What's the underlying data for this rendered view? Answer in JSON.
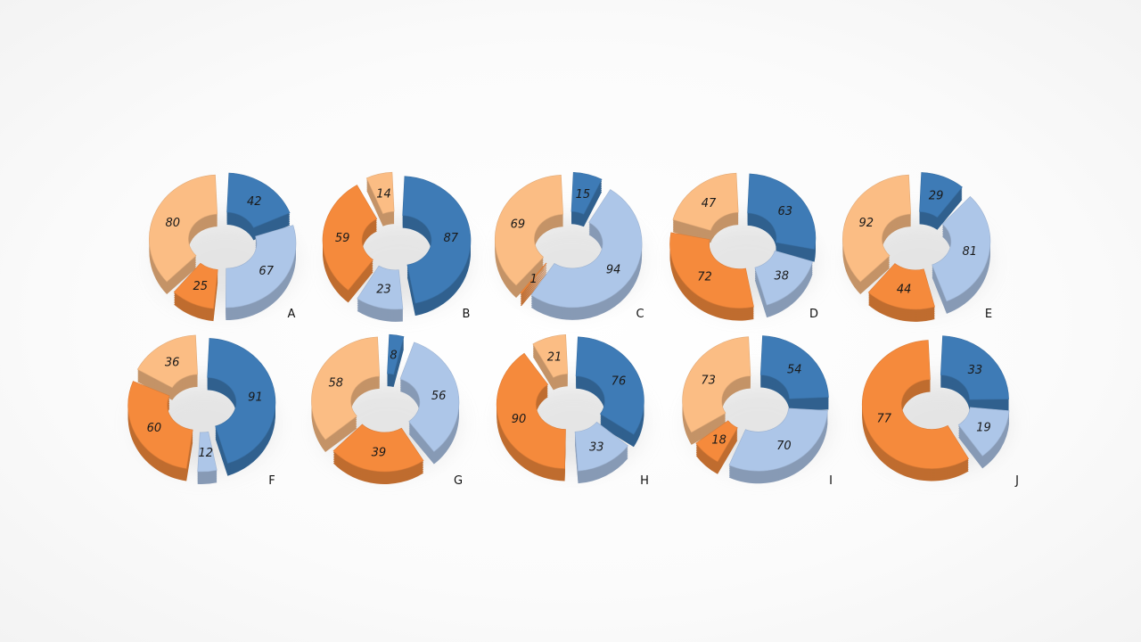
{
  "colors": {
    "dark_blue": "#3e7bb6",
    "light_blue": "#adc6e8",
    "dark_orange": "#f58a3c",
    "light_orange": "#fbbd84"
  },
  "chart_data": [
    {
      "type": "pie",
      "label": "A",
      "slices": [
        {
          "value": 42,
          "color": "dark_blue"
        },
        {
          "value": 67,
          "color": "light_blue"
        },
        {
          "value": 25,
          "color": "dark_orange"
        },
        {
          "value": 80,
          "color": "light_orange"
        }
      ]
    },
    {
      "type": "pie",
      "label": "B",
      "slices": [
        {
          "value": 87,
          "color": "dark_blue"
        },
        {
          "value": 23,
          "color": "light_blue"
        },
        {
          "value": 59,
          "color": "dark_orange"
        },
        {
          "value": 14,
          "color": "light_orange"
        }
      ]
    },
    {
      "type": "pie",
      "label": "C",
      "slices": [
        {
          "value": 15,
          "color": "dark_blue"
        },
        {
          "value": 94,
          "color": "light_blue"
        },
        {
          "value": 1,
          "color": "dark_orange"
        },
        {
          "value": 69,
          "color": "light_orange"
        }
      ]
    },
    {
      "type": "pie",
      "label": "D",
      "slices": [
        {
          "value": 63,
          "color": "dark_blue"
        },
        {
          "value": 38,
          "color": "light_blue"
        },
        {
          "value": 72,
          "color": "dark_orange"
        },
        {
          "value": 47,
          "color": "light_orange"
        }
      ]
    },
    {
      "type": "pie",
      "label": "E",
      "slices": [
        {
          "value": 29,
          "color": "dark_blue"
        },
        {
          "value": 81,
          "color": "light_blue"
        },
        {
          "value": 44,
          "color": "dark_orange"
        },
        {
          "value": 92,
          "color": "light_orange"
        }
      ]
    },
    {
      "type": "pie",
      "label": "F",
      "slices": [
        {
          "value": 91,
          "color": "dark_blue"
        },
        {
          "value": 12,
          "color": "light_blue"
        },
        {
          "value": 60,
          "color": "dark_orange"
        },
        {
          "value": 36,
          "color": "light_orange"
        }
      ]
    },
    {
      "type": "pie",
      "label": "G",
      "slices": [
        {
          "value": 8,
          "color": "dark_blue"
        },
        {
          "value": 56,
          "color": "light_blue"
        },
        {
          "value": 39,
          "color": "dark_orange"
        },
        {
          "value": 58,
          "color": "light_orange"
        }
      ]
    },
    {
      "type": "pie",
      "label": "H",
      "slices": [
        {
          "value": 76,
          "color": "dark_blue"
        },
        {
          "value": 33,
          "color": "light_blue"
        },
        {
          "value": 90,
          "color": "dark_orange"
        },
        {
          "value": 21,
          "color": "light_orange"
        }
      ]
    },
    {
      "type": "pie",
      "label": "I",
      "slices": [
        {
          "value": 54,
          "color": "dark_blue"
        },
        {
          "value": 70,
          "color": "light_blue"
        },
        {
          "value": 18,
          "color": "dark_orange"
        },
        {
          "value": 73,
          "color": "light_orange"
        }
      ]
    },
    {
      "type": "pie",
      "label": "J",
      "slices": [
        {
          "value": 33,
          "color": "dark_blue"
        },
        {
          "value": 19,
          "color": "light_blue"
        },
        {
          "value": 77,
          "color": "dark_orange"
        },
        {
          "value": 0,
          "color": "light_orange"
        }
      ]
    }
  ]
}
